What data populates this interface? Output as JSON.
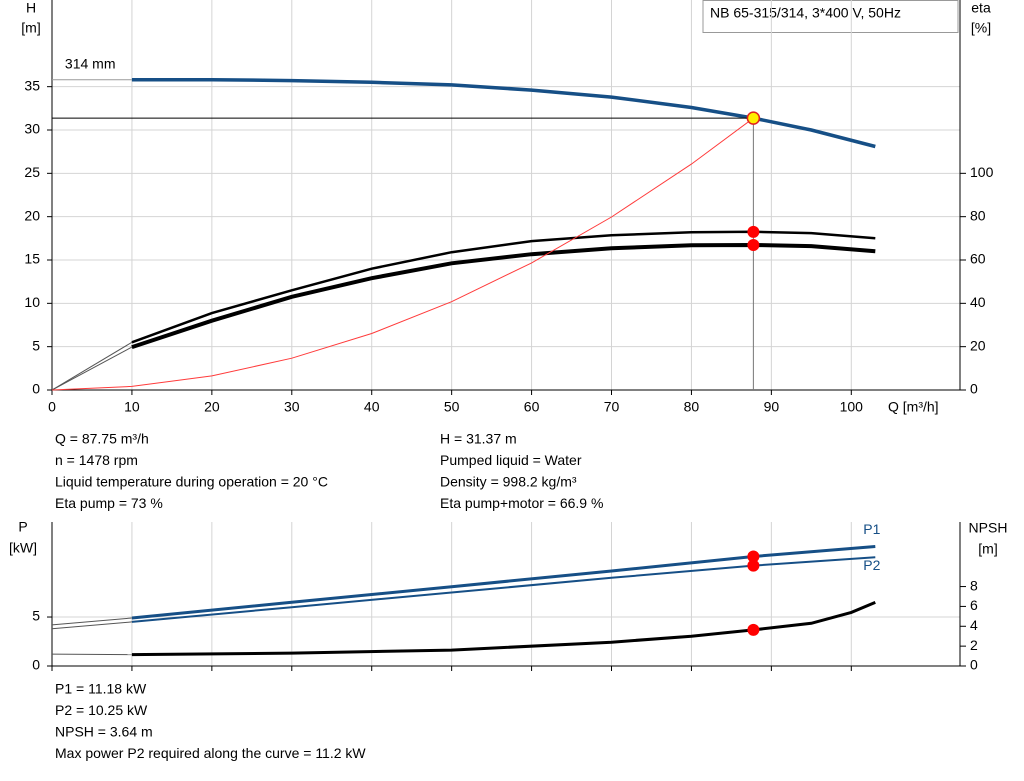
{
  "chart_data": [
    {
      "type": "line",
      "title": "NB 65-315/314, 3*400 V, 50Hz",
      "y_label": "H",
      "y_unit": "[m]",
      "y2_label": "eta",
      "y2_unit": "[%]",
      "x_label": "Q [m³/h]",
      "xlim": [
        0,
        113.6
      ],
      "xticks": [
        0,
        10,
        20,
        30,
        40,
        50,
        60,
        70,
        80,
        90,
        100
      ],
      "ylim": [
        0,
        45
      ],
      "yticks": [
        0,
        5,
        10,
        15,
        20,
        25,
        30,
        35
      ],
      "y2lim": [
        0,
        180
      ],
      "y2ticks": [
        0,
        20,
        40,
        60,
        80,
        100
      ],
      "grid": true,
      "series": [
        {
          "name": "314 mm",
          "color": "#164f86",
          "width": 3.5,
          "x": [
            10,
            20,
            30,
            40,
            50,
            60,
            70,
            80,
            87.75,
            95,
            103
          ],
          "values": [
            35.8,
            35.8,
            35.7,
            35.5,
            35.2,
            34.6,
            33.8,
            32.6,
            31.37,
            30.0,
            28.1
          ]
        },
        {
          "color": "#9a9a9a",
          "width": 1,
          "x": [
            0,
            10
          ],
          "values": [
            35.8,
            35.8
          ]
        },
        {
          "color": "#000000",
          "width": 2.5,
          "axis": "y2",
          "x": [
            10,
            20,
            30,
            40,
            50,
            60,
            70,
            80,
            87.75,
            95,
            103
          ],
          "values": [
            22,
            35.5,
            46,
            56,
            63.6,
            68.7,
            71.4,
            72.8,
            73,
            72.4,
            70
          ]
        },
        {
          "color": "#000000",
          "width": 4,
          "axis": "y2",
          "x": [
            10,
            20,
            30,
            40,
            50,
            60,
            70,
            80,
            87.75,
            95,
            103
          ],
          "values": [
            19.8,
            32,
            43,
            51.6,
            58.5,
            62.7,
            65.4,
            66.8,
            66.9,
            66.4,
            64
          ]
        },
        {
          "color": "#555555",
          "width": 1,
          "axis": "y2",
          "x": [
            0,
            10
          ],
          "values": [
            0,
            22
          ]
        },
        {
          "color": "#555555",
          "width": 1,
          "axis": "y2",
          "x": [
            0,
            10
          ],
          "values": [
            0,
            19.8
          ]
        },
        {
          "color": "#ff3b3b",
          "width": 1,
          "x": [
            0,
            10,
            20,
            30,
            40,
            50,
            60,
            70,
            80,
            87.75
          ],
          "values": [
            0,
            0.41,
            1.63,
            3.67,
            6.52,
            10.19,
            14.67,
            19.96,
            26.07,
            31.37
          ]
        },
        {
          "type": "scatter",
          "color": "#ffee00",
          "cross": true,
          "x": [
            87.75
          ],
          "values": [
            31.37
          ]
        },
        {
          "type": "scatter",
          "color": "#ff0000",
          "axis": "y2",
          "x": [
            87.75,
            87.75
          ],
          "values": [
            73,
            66.9
          ]
        }
      ],
      "annotations": [
        [
          "Q = 87.75 m³/h",
          "n = 1478 rpm",
          "Liquid temperature during operation = 20 °C",
          "Eta pump = 73 %"
        ],
        [
          "H = 31.37 m",
          "Pumped liquid = Water",
          "Density = 998.2 kg/m³",
          "Eta pump+motor = 66.9 %"
        ]
      ]
    },
    {
      "type": "line",
      "y_label": "P",
      "y_unit": "[kW]",
      "y2_label": "NPSH",
      "y2_unit": "[m]",
      "xlim": [
        0,
        113.6
      ],
      "xticks": [
        0,
        10,
        20,
        30,
        40,
        50,
        60,
        70,
        80,
        90,
        100
      ],
      "ylim": [
        0,
        14.7
      ],
      "yticks": [
        0,
        5
      ],
      "y2lim": [
        0,
        14.5
      ],
      "y2ticks": [
        0,
        2,
        4,
        6,
        8
      ],
      "grid": true,
      "series": [
        {
          "name": "P1",
          "color": "#164f86",
          "width": 3,
          "x": [
            10,
            30,
            50,
            70,
            87.75,
            103
          ],
          "values": [
            4.9,
            6.5,
            8.1,
            9.7,
            11.18,
            12.2
          ]
        },
        {
          "name": "P2",
          "color": "#164f86",
          "width": 2,
          "x": [
            10,
            30,
            50,
            70,
            87.75,
            103
          ],
          "values": [
            4.5,
            6.0,
            7.5,
            9.0,
            10.25,
            11.1
          ]
        },
        {
          "color": "#555555",
          "width": 1,
          "x": [
            0,
            10
          ],
          "values": [
            4.2,
            4.9
          ]
        },
        {
          "color": "#555555",
          "width": 1,
          "x": [
            0,
            10
          ],
          "values": [
            3.8,
            4.5
          ]
        },
        {
          "color": "#000000",
          "width": 3,
          "axis": "y2",
          "x": [
            10,
            30,
            50,
            70,
            80,
            87.75,
            95,
            100,
            103
          ],
          "values": [
            1.15,
            1.3,
            1.6,
            2.4,
            3.0,
            3.64,
            4.3,
            5.4,
            6.4
          ]
        },
        {
          "color": "#555555",
          "width": 1,
          "axis": "y2",
          "x": [
            0,
            10
          ],
          "values": [
            1.2,
            1.15
          ]
        },
        {
          "type": "scatter",
          "color": "#ff0000",
          "x": [
            87.75,
            87.75
          ],
          "values": [
            11.18,
            10.25
          ]
        },
        {
          "type": "scatter",
          "color": "#ff0000",
          "axis": "y2",
          "x": [
            87.75
          ],
          "values": [
            3.64
          ]
        }
      ],
      "annotations": [
        [
          "P1 = 11.18 kW",
          "P2 = 10.25 kW",
          "NPSH = 3.64 m",
          "Max power P2 required along the curve = 11.2 kW"
        ]
      ]
    }
  ]
}
